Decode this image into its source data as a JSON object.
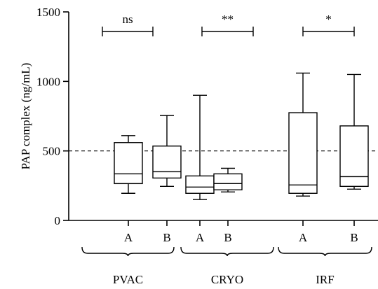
{
  "chart_data": {
    "type": "box",
    "ylabel": "PAP complex (ng/mL)",
    "ylim": [
      0,
      1500
    ],
    "yticks": [
      0,
      500,
      1000,
      1500
    ],
    "reference_line": 500,
    "categories": [
      "A",
      "B",
      "A",
      "B",
      "A",
      "B"
    ],
    "groups": [
      {
        "name": "PVAC",
        "boxes": [
          {
            "label": "A",
            "min": 195,
            "q1": 265,
            "median": 335,
            "q3": 560,
            "max": 610
          },
          {
            "label": "B",
            "min": 245,
            "q1": 305,
            "median": 350,
            "q3": 535,
            "max": 755
          }
        ],
        "significance": "ns"
      },
      {
        "name": "CRYO",
        "boxes": [
          {
            "label": "A",
            "min": 150,
            "q1": 195,
            "median": 240,
            "q3": 320,
            "max": 900
          },
          {
            "label": "B",
            "min": 205,
            "q1": 220,
            "median": 265,
            "q3": 335,
            "max": 375
          }
        ],
        "significance": "**"
      },
      {
        "name": "IRF",
        "boxes": [
          {
            "label": "A",
            "min": 175,
            "q1": 195,
            "median": 255,
            "q3": 775,
            "max": 1060
          },
          {
            "label": "B",
            "min": 225,
            "q1": 245,
            "median": 315,
            "q3": 680,
            "max": 1050
          }
        ],
        "significance": "*"
      }
    ],
    "grid": false
  }
}
